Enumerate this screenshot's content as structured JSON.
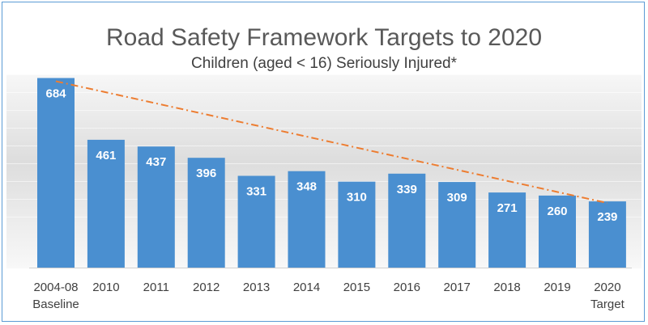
{
  "chart_data": {
    "type": "bar",
    "title": "Road Safety Framework Targets to 2020",
    "subtitle": "Children (aged < 16) Seriously Injured*",
    "categories": [
      [
        "2004-08",
        "Baseline"
      ],
      [
        "2010"
      ],
      [
        "2011"
      ],
      [
        "2012"
      ],
      [
        "2013"
      ],
      [
        "2014"
      ],
      [
        "2015"
      ],
      [
        "2016"
      ],
      [
        "2017"
      ],
      [
        "2018"
      ],
      [
        "2019"
      ],
      [
        "2020",
        "Target"
      ]
    ],
    "values": [
      684,
      461,
      437,
      396,
      331,
      348,
      310,
      339,
      309,
      271,
      260,
      239
    ],
    "trend_line": {
      "from_value": 684,
      "to_value": 239,
      "style": "dash-dot"
    },
    "ylim": [
      0,
      700
    ],
    "xlabel": "",
    "ylabel": "",
    "bar_color": "#4a8fd0",
    "trend_color": "#ed7d31",
    "frame_color": "#5b9bd5"
  }
}
